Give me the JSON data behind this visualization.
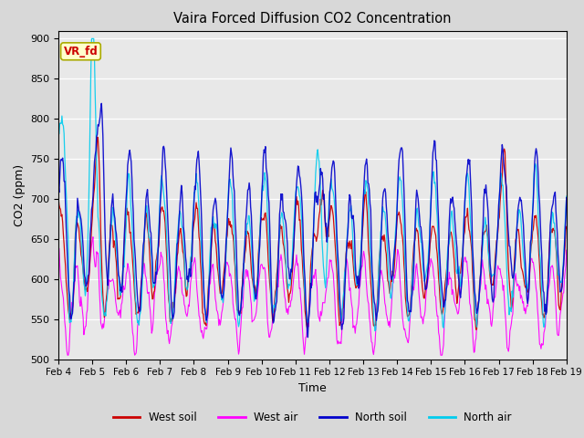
{
  "title": "Vaira Forced Diffusion CO2 Concentration",
  "xlabel": "Time",
  "ylabel": "CO2 (ppm)",
  "ylim": [
    500,
    910
  ],
  "yticks": [
    500,
    550,
    600,
    650,
    700,
    750,
    800,
    850,
    900
  ],
  "date_labels": [
    "Feb 4",
    "Feb 5",
    "Feb 6",
    "Feb 7",
    "Feb 8",
    "Feb 9",
    "Feb 10",
    "Feb 11",
    "Feb 12",
    "Feb 13",
    "Feb 14",
    "Feb 15",
    "Feb 16",
    "Feb 17",
    "Feb 18",
    "Feb 19"
  ],
  "series": {
    "west_soil": {
      "color": "#cc0000",
      "label": "West soil"
    },
    "west_air": {
      "color": "#ff00ff",
      "label": "West air"
    },
    "north_soil": {
      "color": "#0000cc",
      "label": "North soil"
    },
    "north_air": {
      "color": "#00ccee",
      "label": "North air"
    }
  },
  "legend_label": "VR_fd",
  "background_color": "#d8d8d8",
  "plot_bg_color": "#e8e8e8"
}
